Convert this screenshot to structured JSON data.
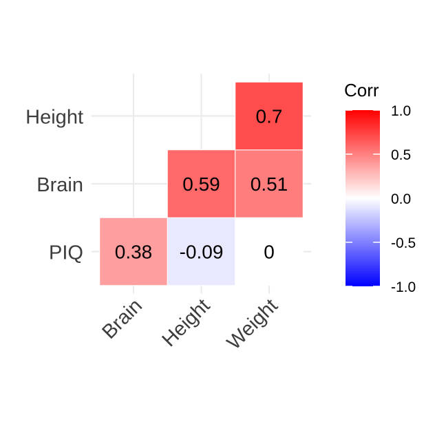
{
  "chart_data": {
    "type": "heatmap",
    "x_categories": [
      "Brain",
      "Height",
      "Weight"
    ],
    "y_categories": [
      "PIQ",
      "Brain",
      "Height"
    ],
    "cells": [
      {
        "x": "Brain",
        "y": "PIQ",
        "value": 0.38,
        "label": "0.38"
      },
      {
        "x": "Height",
        "y": "PIQ",
        "value": -0.09,
        "label": "-0.09"
      },
      {
        "x": "Weight",
        "y": "PIQ",
        "value": 0,
        "label": "0"
      },
      {
        "x": "Height",
        "y": "Brain",
        "value": 0.59,
        "label": "0.59"
      },
      {
        "x": "Weight",
        "y": "Brain",
        "value": 0.51,
        "label": "0.51"
      },
      {
        "x": "Weight",
        "y": "Height",
        "value": 0.7,
        "label": "0.7"
      }
    ],
    "legend": {
      "title": "Corr",
      "ticks": [
        {
          "value": 1.0,
          "label": "1.0"
        },
        {
          "value": 0.5,
          "label": "0.5"
        },
        {
          "value": 0.0,
          "label": "0.0"
        },
        {
          "value": -0.5,
          "label": "-0.5"
        },
        {
          "value": -1.0,
          "label": "-1.0"
        }
      ],
      "range": [
        -1,
        1
      ],
      "placement": "right"
    },
    "colors": {
      "low": "#0000ff",
      "mid": "#ffffff",
      "high": "#ff0000"
    },
    "grid": true,
    "lower_triangle": true
  }
}
